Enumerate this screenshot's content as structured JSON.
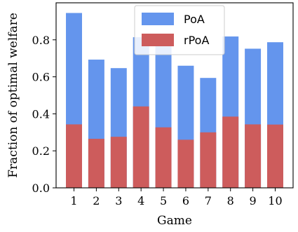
{
  "chart_data": {
    "type": "bar",
    "stacking": "overlay",
    "xlabel": "Game",
    "ylabel": "Fraction of optimal welfare",
    "categories": [
      "1",
      "2",
      "3",
      "4",
      "5",
      "6",
      "7",
      "8",
      "9",
      "10"
    ],
    "ylim": [
      0,
      1.0
    ],
    "yticks": [
      "0.0",
      "0.2",
      "0.4",
      "0.6",
      "0.8"
    ],
    "ytick_values": [
      0.0,
      0.2,
      0.4,
      0.6,
      0.8
    ],
    "grid": false,
    "legend_position": "top-center",
    "series": [
      {
        "name": "PoA",
        "color": "#6495ED",
        "values": [
          0.945,
          0.693,
          0.647,
          0.814,
          0.78,
          0.66,
          0.594,
          0.818,
          0.752,
          0.787
        ]
      },
      {
        "name": "rPoA",
        "color": "#CD5C5C",
        "values": [
          0.343,
          0.265,
          0.276,
          0.44,
          0.327,
          0.26,
          0.3,
          0.385,
          0.343,
          0.342
        ]
      }
    ]
  }
}
